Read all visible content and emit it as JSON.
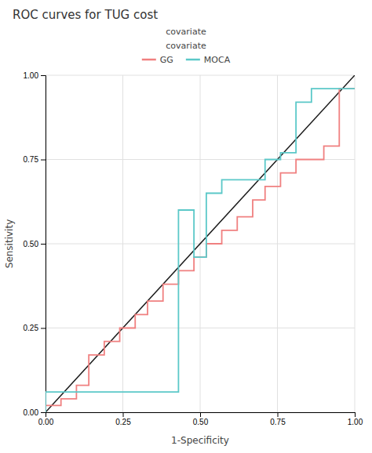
{
  "chart_data": {
    "type": "line",
    "title": "ROC curves for TUG cost",
    "subtitle": "covariate",
    "xlabel": "1-Specificity",
    "ylabel": "Sensitivity",
    "legend_title": "covariate",
    "grid": true,
    "xlim": [
      0.0,
      1.0
    ],
    "ylim": [
      0.0,
      1.0
    ],
    "xticks": [
      {
        "value": 0.0,
        "label": "0.00"
      },
      0.25,
      {
        "value": 0.5,
        "label": "0.50"
      },
      0.75,
      {
        "value": 1.0,
        "label": "1.00"
      }
    ],
    "yticks": [
      {
        "value": 0.0,
        "label": "0.00"
      },
      0.25,
      {
        "value": 0.5,
        "label": "0.50"
      },
      0.75,
      {
        "value": 1.0,
        "label": "1.00"
      }
    ],
    "series": [
      {
        "color": "#1A1A1A",
        "x": [
          0,
          1
        ],
        "values": [
          0,
          1
        ]
      },
      {
        "name": "GG",
        "color": "#F08080",
        "x": [
          0.0,
          0.0,
          0.05,
          0.05,
          0.1,
          0.1,
          0.14,
          0.14,
          0.19,
          0.19,
          0.24,
          0.24,
          0.29,
          0.29,
          0.33,
          0.33,
          0.38,
          0.38,
          0.43,
          0.43,
          0.48,
          0.48,
          0.52,
          0.52,
          0.57,
          0.57,
          0.62,
          0.62,
          0.67,
          0.67,
          0.71,
          0.71,
          0.76,
          0.76,
          0.81,
          0.81,
          0.86,
          0.86,
          0.9,
          0.9,
          0.95,
          0.95,
          1.0
        ],
        "values": [
          0.0,
          0.02,
          0.02,
          0.04,
          0.04,
          0.08,
          0.08,
          0.17,
          0.17,
          0.21,
          0.21,
          0.25,
          0.25,
          0.29,
          0.29,
          0.33,
          0.33,
          0.38,
          0.38,
          0.42,
          0.42,
          0.46,
          0.46,
          0.5,
          0.5,
          0.54,
          0.54,
          0.58,
          0.58,
          0.63,
          0.63,
          0.67,
          0.67,
          0.71,
          0.71,
          0.75,
          0.75,
          0.75,
          0.75,
          0.79,
          0.79,
          0.96,
          0.96
        ]
      },
      {
        "name": "MOCA",
        "color": "#5BC8C8",
        "x": [
          0.0,
          0.0,
          0.43,
          0.43,
          0.48,
          0.48,
          0.52,
          0.52,
          0.57,
          0.57,
          0.71,
          0.71,
          0.76,
          0.76,
          0.81,
          0.81,
          0.86,
          0.86,
          1.0
        ],
        "values": [
          0.0,
          0.06,
          0.06,
          0.6,
          0.6,
          0.46,
          0.46,
          0.65,
          0.65,
          0.69,
          0.69,
          0.75,
          0.75,
          0.77,
          0.77,
          0.92,
          0.92,
          0.96,
          0.96
        ]
      }
    ]
  }
}
